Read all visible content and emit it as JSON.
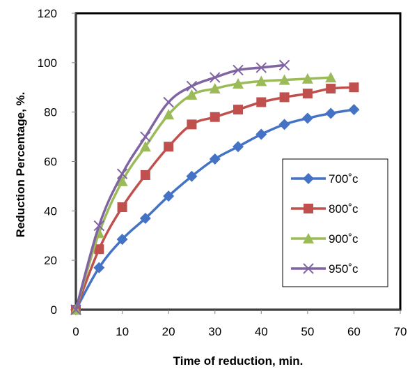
{
  "chart_data": {
    "type": "line",
    "title": "",
    "xlabel": "Time of reduction, min.",
    "ylabel": "Reduction Percentage, %.",
    "xlim": [
      0,
      70
    ],
    "ylim": [
      0,
      120
    ],
    "x_ticks": [
      "0",
      "10",
      "20",
      "30",
      "40",
      "50",
      "60",
      "70"
    ],
    "y_ticks": [
      "0",
      "20",
      "40",
      "60",
      "80",
      "100",
      "120"
    ],
    "grid": false,
    "legend_position": "right",
    "series": [
      {
        "name": "700˚c",
        "color": "#4472C4",
        "marker": "diamond",
        "x": [
          0,
          5,
          10,
          15,
          20,
          25,
          30,
          35,
          40,
          45,
          50,
          55,
          60
        ],
        "y": [
          0,
          17,
          28.5,
          37,
          46,
          54,
          61,
          66,
          71,
          75,
          77.5,
          79.5,
          81
        ]
      },
      {
        "name": "800˚c",
        "color": "#C0504D",
        "marker": "square",
        "x": [
          0,
          5,
          10,
          15,
          20,
          25,
          30,
          35,
          40,
          45,
          50,
          55,
          60
        ],
        "y": [
          0,
          24.5,
          41.5,
          54.5,
          66,
          75,
          78,
          81,
          84,
          86,
          87.5,
          89.5,
          90
        ]
      },
      {
        "name": "900˚c",
        "color": "#9BBB59",
        "marker": "triangle",
        "x": [
          0,
          5,
          10,
          15,
          20,
          25,
          30,
          35,
          40,
          45,
          50,
          55
        ],
        "y": [
          0,
          31,
          52,
          66,
          79,
          87,
          89.5,
          91.5,
          92.5,
          93,
          93.5,
          94
        ]
      },
      {
        "name": "950˚c",
        "color": "#8064A2",
        "marker": "x",
        "x": [
          0,
          5,
          10,
          15,
          20,
          25,
          30,
          35,
          40,
          45
        ],
        "y": [
          0,
          34,
          55,
          70,
          84,
          90.5,
          94,
          97,
          98,
          99
        ]
      }
    ]
  }
}
